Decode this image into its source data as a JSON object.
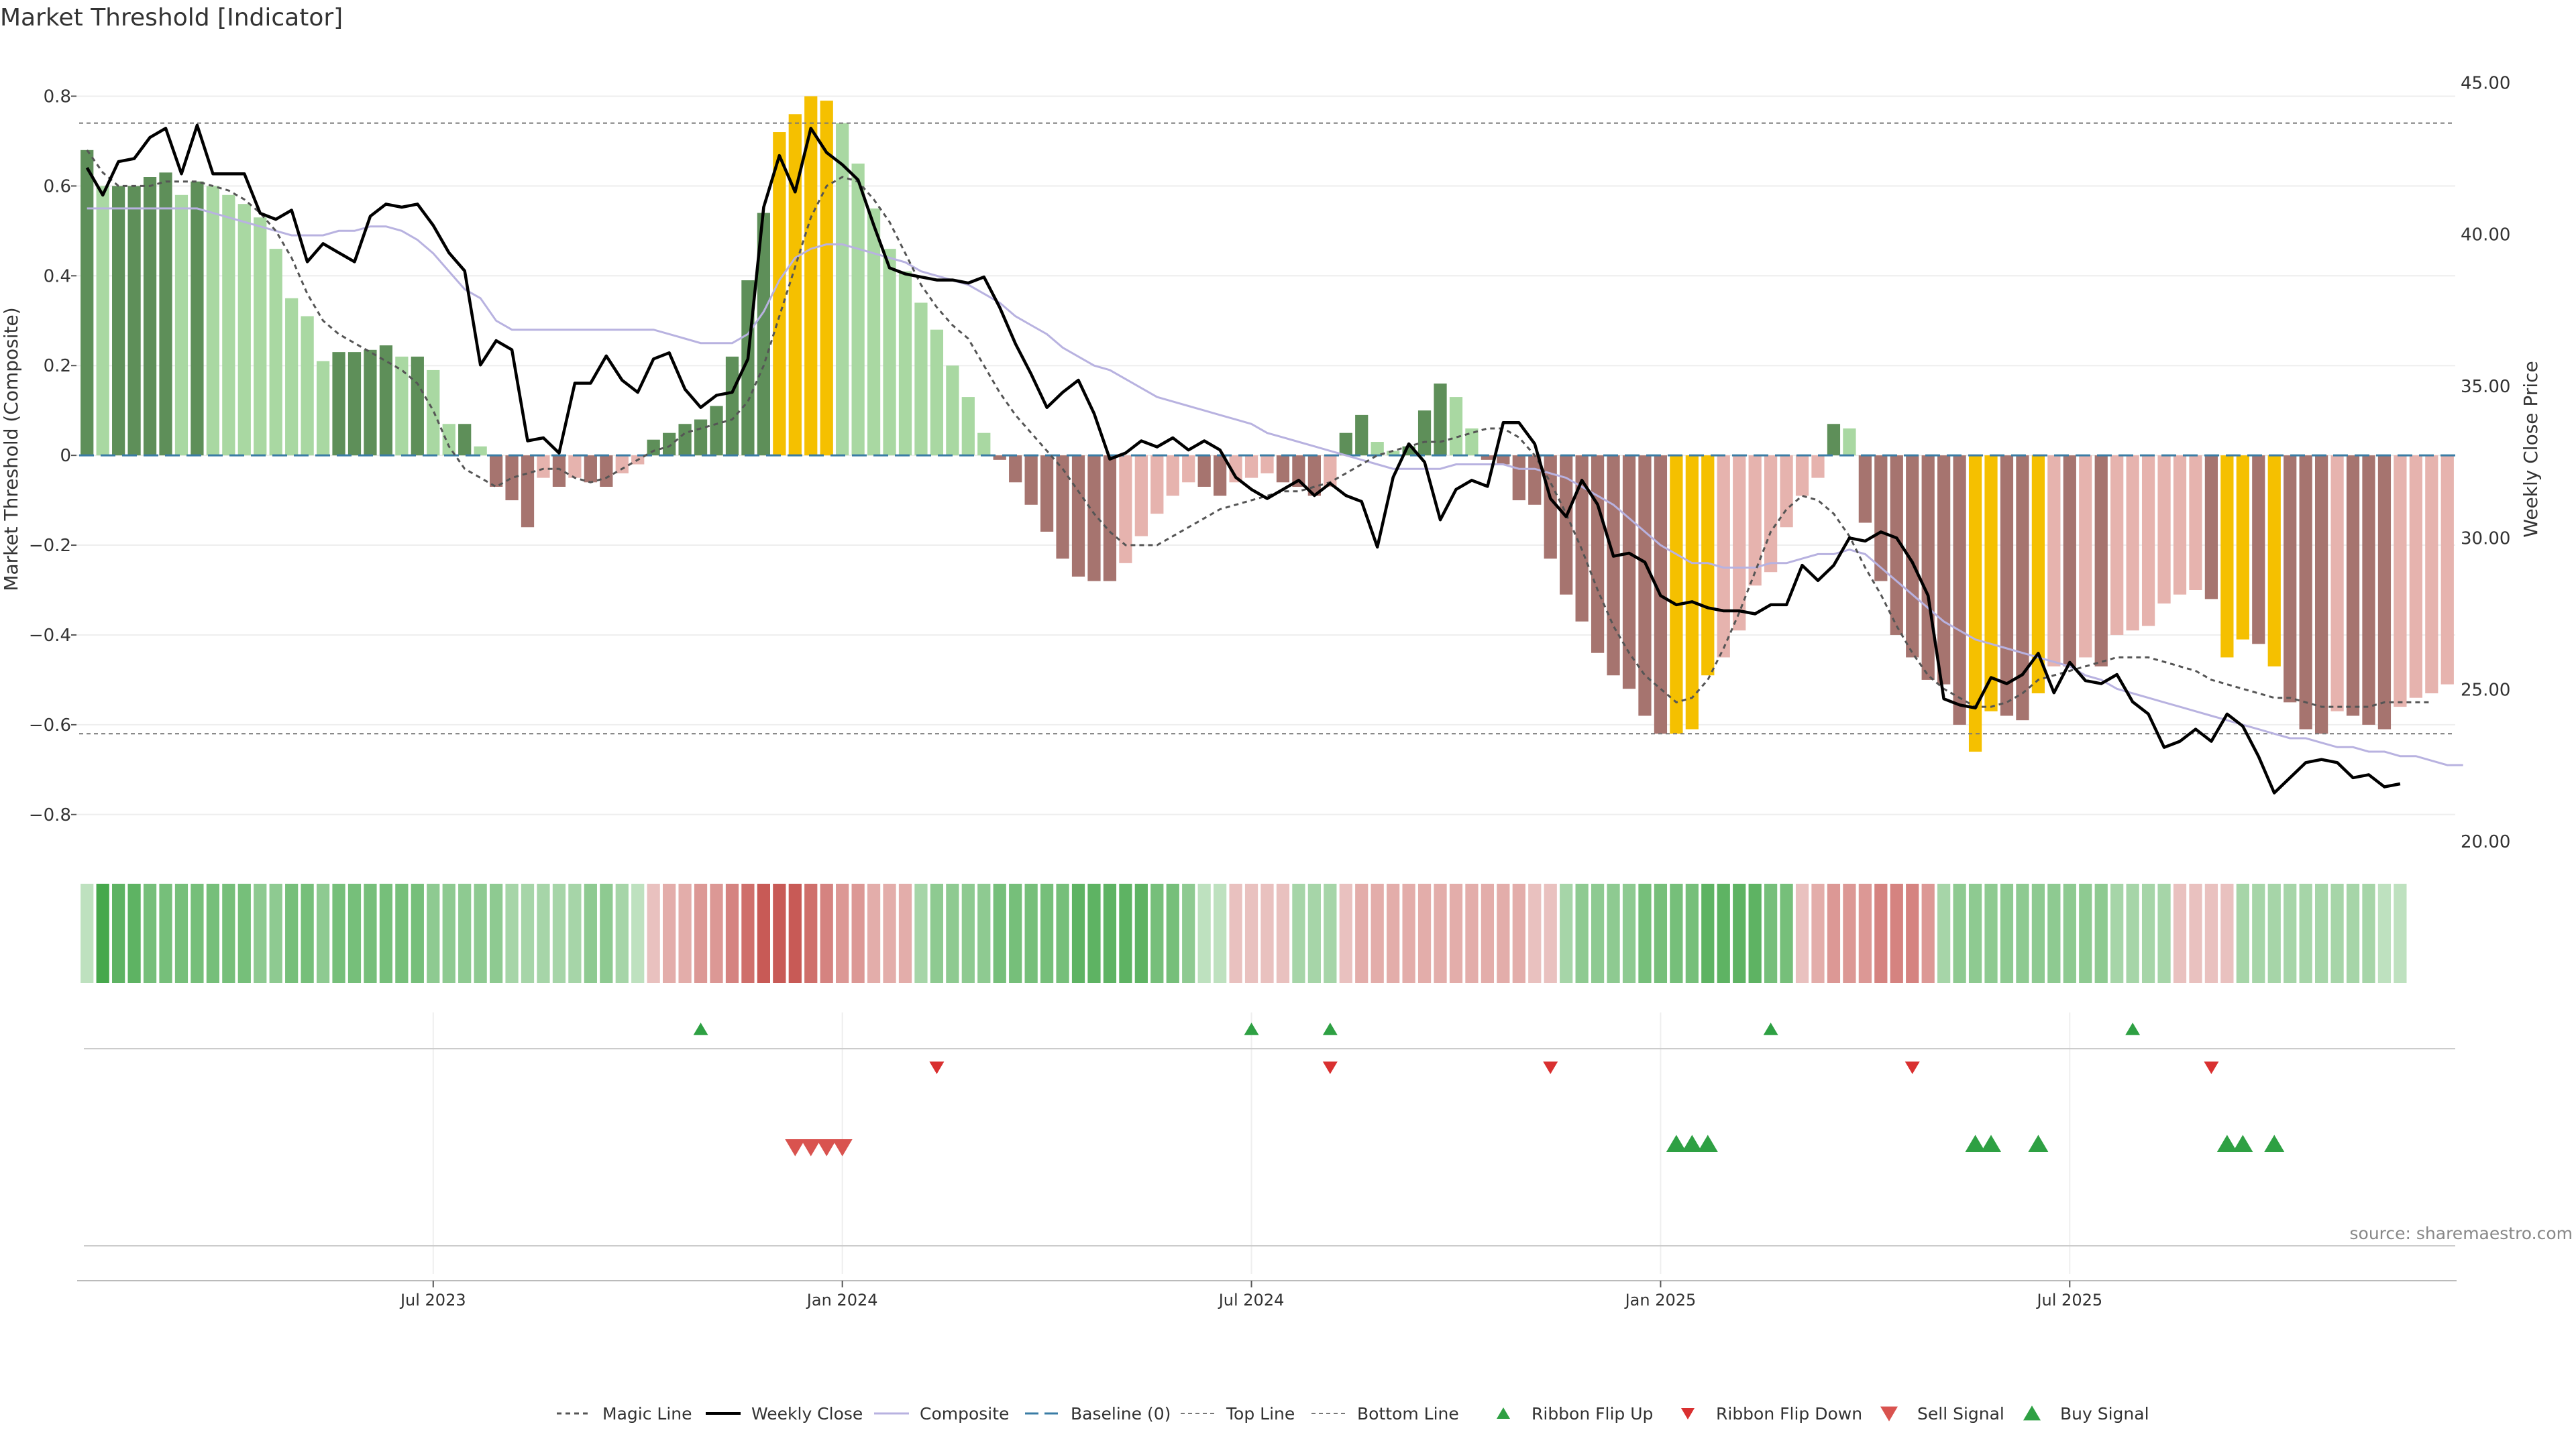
{
  "chart_data": {
    "type": "bar",
    "title": "Market Threshold [Indicator]",
    "ylabel": "Market Threshold (Composite)",
    "y2label": "Weekly Close Price",
    "source": "source: sharemaestro.com",
    "ylim": [
      -0.875,
      0.85
    ],
    "y2lim": [
      20,
      45
    ],
    "yticks": [
      "0.8",
      "0.6",
      "0.4",
      "0.2",
      "0",
      "−0.2",
      "−0.4",
      "−0.6",
      "−0.8"
    ],
    "y2ticks": [
      "20.00",
      "25.00",
      "30.00",
      "35.00",
      "40.00",
      "45.00"
    ],
    "xticks": [
      "Jul 2023",
      "Jan 2024",
      "Jul 2024",
      "Jan 2025",
      "Jul 2025"
    ],
    "xtick_weeks": [
      22,
      48,
      74,
      100,
      126
    ],
    "top_line": 0.74,
    "bottom_line": -0.62,
    "colors": {
      "pos_light": "#a9d8a2",
      "pos_dark": "#5e8f59",
      "neg_light": "#e6b3ae",
      "neg_dark": "#a6746f",
      "extreme": "#f5c000",
      "magic": "#555555",
      "close": "#000000",
      "composite": "#b8b2e0",
      "baseline": "#3a7ca5",
      "buy": "#2ea043",
      "sell": "#d9534f"
    },
    "composite_bars": [
      0.68,
      0.6,
      0.6,
      0.6,
      0.62,
      0.63,
      0.58,
      0.61,
      0.6,
      0.58,
      0.56,
      0.53,
      0.46,
      0.35,
      0.31,
      0.21,
      0.23,
      0.23,
      0.235,
      0.245,
      0.22,
      0.22,
      0.19,
      0.07,
      0.07,
      0.02,
      -0.07,
      -0.1,
      -0.16,
      -0.05,
      -0.07,
      -0.05,
      -0.06,
      -0.07,
      -0.04,
      -0.02,
      0.035,
      0.05,
      0.07,
      0.08,
      0.11,
      0.22,
      0.39,
      0.54,
      0.72,
      0.76,
      0.8,
      0.79,
      0.74,
      0.65,
      0.55,
      0.46,
      0.41,
      0.34,
      0.28,
      0.2,
      0.13,
      0.05,
      -0.01,
      -0.06,
      -0.11,
      -0.17,
      -0.23,
      -0.27,
      -0.28,
      -0.28,
      -0.24,
      -0.18,
      -0.13,
      -0.09,
      -0.06,
      -0.07,
      -0.09,
      -0.06,
      -0.05,
      -0.04,
      -0.06,
      -0.07,
      -0.09,
      -0.07,
      0.05,
      0.09,
      0.03,
      0.01,
      0.02,
      0.1,
      0.16,
      0.13,
      0.06,
      -0.01,
      -0.02,
      -0.1,
      -0.11,
      -0.23,
      -0.31,
      -0.37,
      -0.44,
      -0.49,
      -0.52,
      -0.58,
      -0.62,
      -0.62,
      -0.61,
      -0.49,
      -0.45,
      -0.39,
      -0.29,
      -0.26,
      -0.16,
      -0.09,
      -0.05,
      0.07,
      0.06,
      -0.15,
      -0.28,
      -0.4,
      -0.45,
      -0.5,
      -0.51,
      -0.6,
      -0.66,
      -0.57,
      -0.58,
      -0.59,
      -0.53,
      -0.47,
      -0.47,
      -0.45,
      -0.47,
      -0.4,
      -0.39,
      -0.38,
      -0.33,
      -0.31,
      -0.3,
      -0.32,
      -0.45,
      -0.41,
      -0.42,
      -0.47,
      -0.55,
      -0.61,
      -0.62,
      -0.57,
      -0.58,
      -0.6,
      -0.61,
      -0.56,
      -0.54,
      -0.53,
      -0.51
    ],
    "weekly_close": [
      42.2,
      41.3,
      42.4,
      42.5,
      43.2,
      43.5,
      42,
      43.6,
      42,
      42,
      42,
      40.7,
      40.5,
      40.8,
      39.1,
      39.7,
      39.4,
      39.1,
      40.6,
      41,
      40.9,
      41,
      40.3,
      39.4,
      38.8,
      35.7,
      36.5,
      36.2,
      33.2,
      33.3,
      32.8,
      35.1,
      35.1,
      36,
      35.2,
      34.8,
      35.9,
      36.1,
      34.9,
      34.3,
      34.7,
      34.8,
      35.9,
      40.9,
      42.6,
      41.4,
      43.5,
      42.7,
      42.3,
      41.8,
      40.3,
      38.9,
      38.7,
      38.6,
      38.5,
      38.5,
      38.4,
      38.6,
      37.6,
      36.4,
      35.4,
      34.3,
      34.8,
      35.2,
      34.1,
      32.6,
      32.8,
      33.2,
      33,
      33.3,
      32.9,
      33.2,
      32.9,
      32,
      31.6,
      31.3,
      31.6,
      31.9,
      31.4,
      31.8,
      31.4,
      31.2,
      29.7,
      32,
      33.1,
      32.5,
      30.6,
      31.6,
      31.9,
      31.7,
      33.8,
      33.8,
      33.1,
      31.3,
      30.7,
      31.9,
      31.1,
      29.4,
      29.5,
      29.2,
      28.1,
      27.8,
      27.9,
      27.7,
      27.6,
      27.6,
      27.5,
      27.8,
      27.8,
      29.1,
      28.6,
      29.1,
      30,
      29.9,
      30.2,
      30,
      29.2,
      28.1,
      24.7,
      24.5,
      24.4,
      25.4,
      25.2,
      25.5,
      26.2,
      24.9,
      25.9,
      25.3,
      25.2,
      25.5,
      24.6,
      24.2,
      23.1,
      23.3,
      23.7,
      23.3,
      24.2,
      23.8,
      22.8,
      21.6,
      22.1,
      22.6,
      22.7,
      22.6,
      22.1,
      22.2,
      21.8,
      21.9
    ],
    "magic_line": [
      0.68,
      0.63,
      0.6,
      0.6,
      0.6,
      0.61,
      0.61,
      0.61,
      0.6,
      0.59,
      0.57,
      0.54,
      0.5,
      0.44,
      0.36,
      0.3,
      0.27,
      0.25,
      0.23,
      0.21,
      0.19,
      0.16,
      0.1,
      0.02,
      -0.03,
      -0.05,
      -0.07,
      -0.05,
      -0.04,
      -0.03,
      -0.03,
      -0.05,
      -0.06,
      -0.05,
      -0.03,
      -0.01,
      0.01,
      0.02,
      0.05,
      0.06,
      0.07,
      0.08,
      0.12,
      0.2,
      0.31,
      0.42,
      0.53,
      0.6,
      0.62,
      0.61,
      0.57,
      0.52,
      0.45,
      0.38,
      0.33,
      0.29,
      0.26,
      0.2,
      0.14,
      0.09,
      0.05,
      0.01,
      -0.03,
      -0.08,
      -0.13,
      -0.17,
      -0.2,
      -0.2,
      -0.2,
      -0.18,
      -0.16,
      -0.14,
      -0.12,
      -0.11,
      -0.1,
      -0.09,
      -0.08,
      -0.08,
      -0.07,
      -0.06,
      -0.04,
      -0.02,
      0,
      0.01,
      0.02,
      0.03,
      0.03,
      0.04,
      0.05,
      0.06,
      0.06,
      0.04,
      0,
      -0.06,
      -0.13,
      -0.21,
      -0.3,
      -0.38,
      -0.44,
      -0.49,
      -0.52,
      -0.55,
      -0.54,
      -0.5,
      -0.43,
      -0.35,
      -0.26,
      -0.17,
      -0.12,
      -0.09,
      -0.1,
      -0.13,
      -0.18,
      -0.25,
      -0.31,
      -0.38,
      -0.44,
      -0.49,
      -0.52,
      -0.54,
      -0.56,
      -0.56,
      -0.55,
      -0.53,
      -0.5,
      -0.49,
      -0.48,
      -0.47,
      -0.46,
      -0.45,
      -0.45,
      -0.45,
      -0.46,
      -0.47,
      -0.48,
      -0.5,
      -0.51,
      -0.52,
      -0.53,
      -0.54,
      -0.54,
      -0.55,
      -0.56,
      -0.56,
      -0.56,
      -0.56,
      -0.55,
      -0.55,
      -0.55,
      -0.55
    ],
    "composite_line": [
      0.55,
      0.55,
      0.55,
      0.55,
      0.55,
      0.55,
      0.55,
      0.55,
      0.54,
      0.53,
      0.52,
      0.51,
      0.5,
      0.49,
      0.49,
      0.49,
      0.5,
      0.5,
      0.51,
      0.51,
      0.5,
      0.48,
      0.45,
      0.41,
      0.37,
      0.35,
      0.3,
      0.28,
      0.28,
      0.28,
      0.28,
      0.28,
      0.28,
      0.28,
      0.28,
      0.28,
      0.28,
      0.27,
      0.26,
      0.25,
      0.25,
      0.25,
      0.27,
      0.32,
      0.39,
      0.44,
      0.46,
      0.47,
      0.47,
      0.46,
      0.45,
      0.44,
      0.43,
      0.41,
      0.4,
      0.39,
      0.38,
      0.36,
      0.34,
      0.31,
      0.29,
      0.27,
      0.24,
      0.22,
      0.2,
      0.19,
      0.17,
      0.15,
      0.13,
      0.12,
      0.11,
      0.1,
      0.09,
      0.08,
      0.07,
      0.05,
      0.04,
      0.03,
      0.02,
      0.01,
      0,
      -0.01,
      -0.02,
      -0.03,
      -0.03,
      -0.03,
      -0.03,
      -0.02,
      -0.02,
      -0.02,
      -0.02,
      -0.03,
      -0.03,
      -0.04,
      -0.05,
      -0.07,
      -0.09,
      -0.11,
      -0.14,
      -0.17,
      -0.2,
      -0.22,
      -0.24,
      -0.24,
      -0.25,
      -0.25,
      -0.25,
      -0.24,
      -0.24,
      -0.23,
      -0.22,
      -0.22,
      -0.21,
      -0.22,
      -0.25,
      -0.28,
      -0.31,
      -0.34,
      -0.37,
      -0.39,
      -0.41,
      -0.42,
      -0.43,
      -0.44,
      -0.45,
      -0.46,
      -0.47,
      -0.49,
      -0.5,
      -0.52,
      -0.53,
      -0.54,
      -0.55,
      -0.56,
      -0.57,
      -0.58,
      -0.59,
      -0.6,
      -0.61,
      -0.62,
      -0.63,
      -0.63,
      -0.64,
      -0.65,
      -0.65,
      -0.66,
      -0.66,
      -0.67,
      -0.67,
      -0.68,
      -0.69,
      -0.69
    ],
    "ribbon": [
      1,
      6,
      5,
      5,
      4,
      4,
      4,
      4,
      4,
      4,
      4,
      3,
      3,
      4,
      4,
      3,
      4,
      4,
      4,
      4,
      4,
      4,
      3,
      3,
      3,
      3,
      3,
      2,
      2,
      2,
      2,
      2,
      3,
      3,
      2,
      1,
      -1,
      -2,
      -2,
      -3,
      -3,
      -4,
      -5,
      -6,
      -6,
      -6,
      -5,
      -4,
      -3,
      -3,
      -2,
      -2,
      -2,
      2,
      3,
      3,
      3,
      3,
      4,
      4,
      4,
      4,
      4,
      5,
      5,
      5,
      5,
      5,
      4,
      4,
      3,
      1,
      1,
      -1,
      -1,
      -1,
      -1,
      2,
      2,
      2,
      -1,
      -2,
      -2,
      -2,
      -2,
      -2,
      -2,
      -2,
      -2,
      -2,
      -2,
      -2,
      -1,
      -1,
      2,
      3,
      3,
      3,
      3,
      4,
      4,
      4,
      4,
      5,
      5,
      5,
      5,
      4,
      4,
      -1,
      -2,
      -3,
      -3,
      -3,
      -4,
      -4,
      -4,
      -3,
      2,
      3,
      3,
      3,
      3,
      3,
      3,
      3,
      3,
      3,
      3,
      2,
      2,
      2,
      2,
      -1,
      -1,
      -1,
      -1,
      2,
      2,
      2,
      2,
      2,
      2,
      2,
      2,
      2,
      1,
      1
    ],
    "ribbon_flip_up": [
      39,
      74,
      79,
      107,
      130
    ],
    "ribbon_flip_down": [
      54,
      79,
      93,
      116,
      135
    ],
    "sell_signal": [
      45,
      46,
      47,
      48
    ],
    "buy_signal": [
      101,
      102,
      103,
      120,
      121,
      124,
      136,
      137,
      139
    ],
    "legend": [
      "Magic Line",
      "Weekly Close",
      "Composite",
      "Baseline (0)",
      "Top Line",
      "Bottom Line",
      "Ribbon Flip Up",
      "Ribbon Flip Down",
      "Sell Signal",
      "Buy Signal"
    ]
  }
}
